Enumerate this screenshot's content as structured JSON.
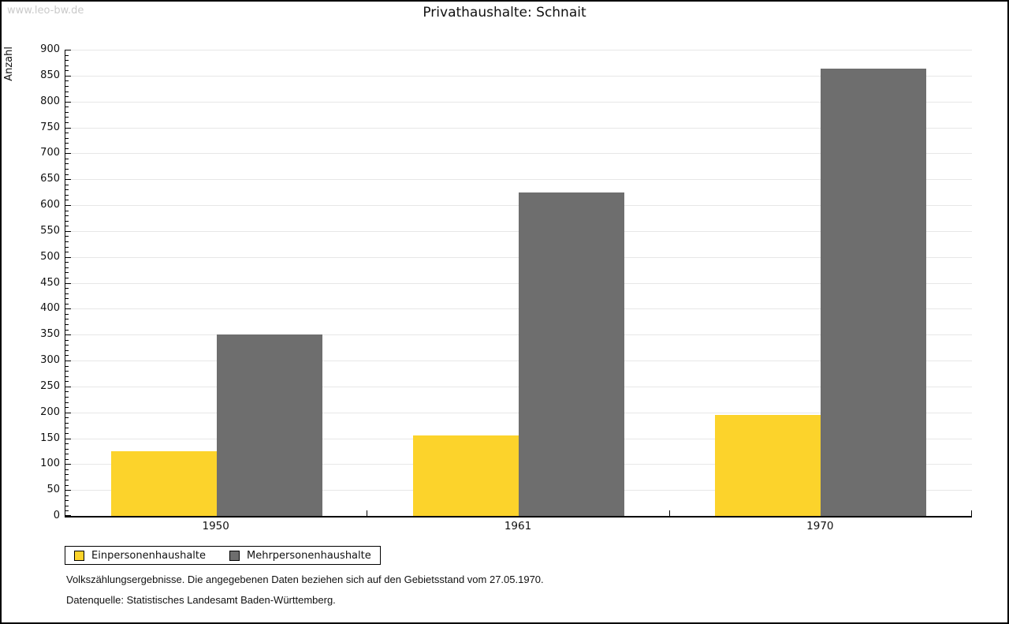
{
  "watermark": "www.leo-bw.de",
  "title": "Privathaushalte: Schnait",
  "chart_data": {
    "type": "bar",
    "title": "Privathaushalte: Schnait",
    "ylabel": "Anzahl",
    "xlabel": "",
    "ylim": [
      0,
      900
    ],
    "y_major_step": 50,
    "y_minor_step": 10,
    "grid": "horizontal-major",
    "legend_position": "bottom-left",
    "categories": [
      "1950",
      "1961",
      "1970"
    ],
    "series": [
      {
        "name": "Einpersonenhaushalte",
        "color": "#FCD32B",
        "values": [
          125,
          155,
          195
        ]
      },
      {
        "name": "Mehrpersonenhaushalte",
        "color": "#6E6E6E",
        "values": [
          350,
          625,
          863
        ]
      }
    ]
  },
  "footnotes": [
    "Volkszählungsergebnisse. Die angegebenen Daten beziehen sich auf den Gebietsstand vom 27.05.1970.",
    "Datenquelle: Statistisches Landesamt Baden-Württemberg."
  ]
}
